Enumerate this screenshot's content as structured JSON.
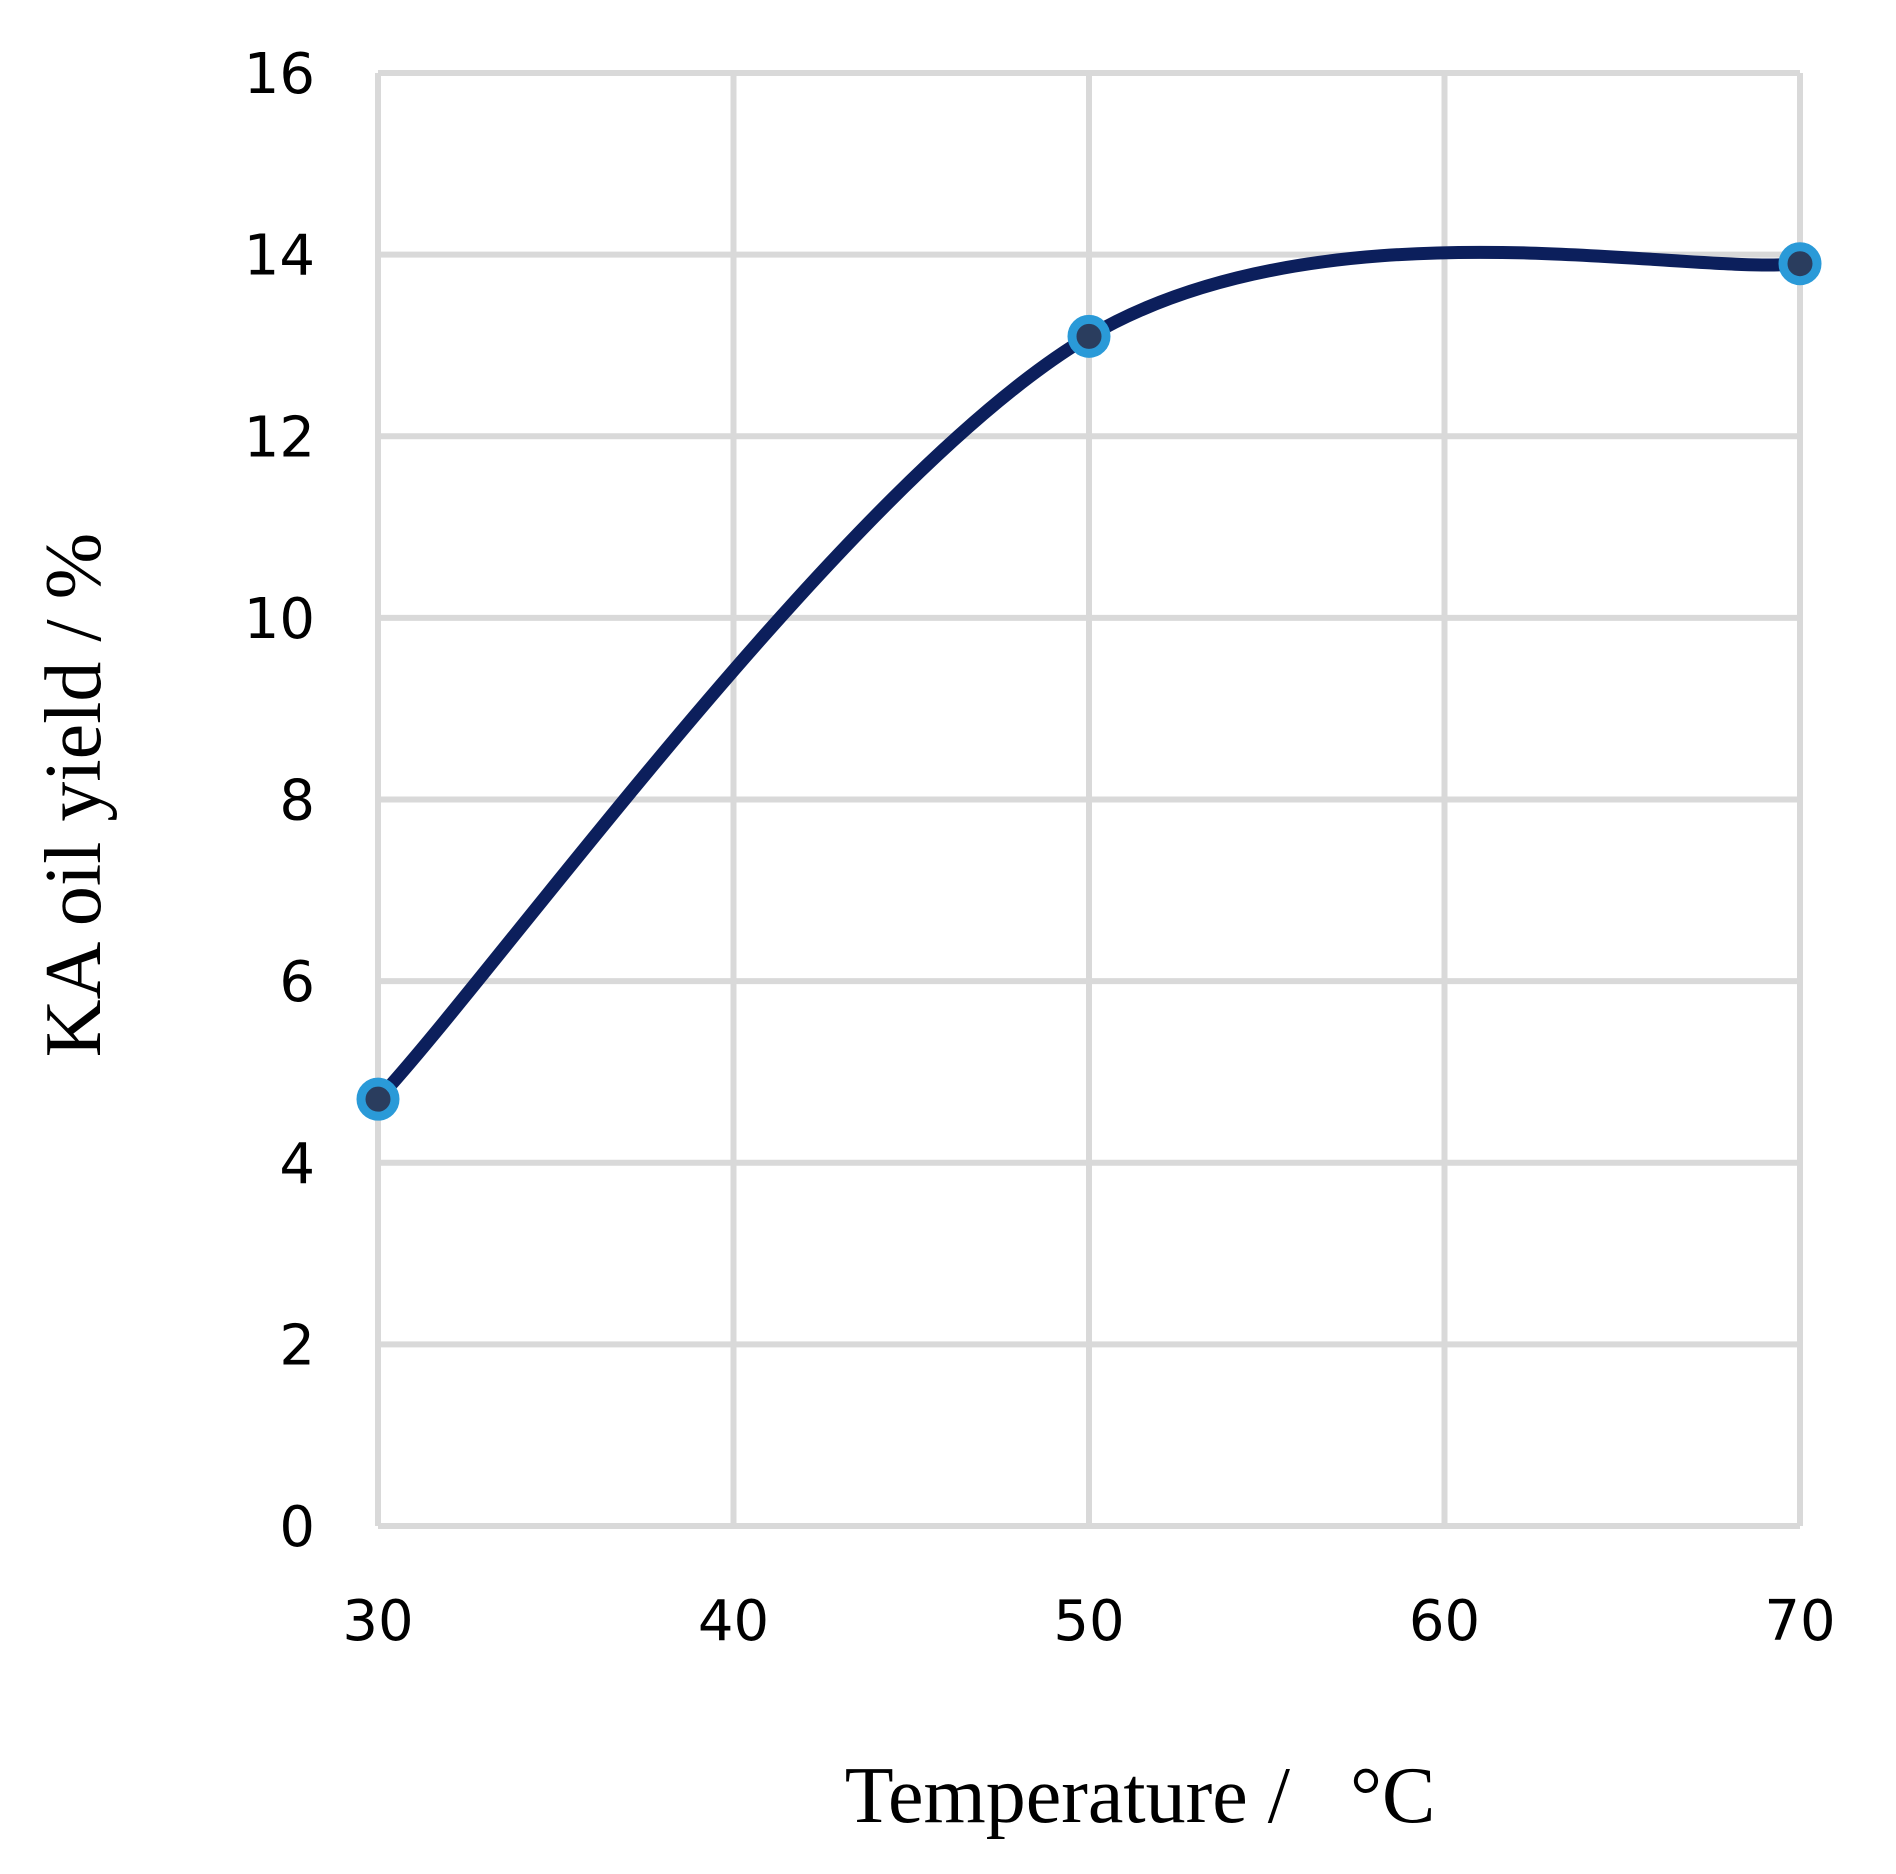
{
  "chart_data": {
    "type": "line",
    "title": "",
    "xlabel": "Temperature /   °C",
    "ylabel": "KA oil yield / %",
    "x": [
      30,
      50,
      70
    ],
    "series": [
      {
        "values": [
          4.7,
          13.1,
          13.9
        ]
      }
    ],
    "xlim": [
      30,
      70
    ],
    "ylim": [
      0,
      16
    ],
    "xticks": [
      "30",
      "40",
      "50",
      "60",
      "70"
    ],
    "yticks": [
      "0",
      "2",
      "4",
      "6",
      "8",
      "10",
      "12",
      "14",
      "16"
    ],
    "grid": true,
    "smooth": true,
    "colors": {
      "line": "#0c1f5c",
      "marker_edge": "#2a9ad8",
      "marker_fill": "#2a3d5e",
      "grid": "#d9d9d9"
    }
  }
}
